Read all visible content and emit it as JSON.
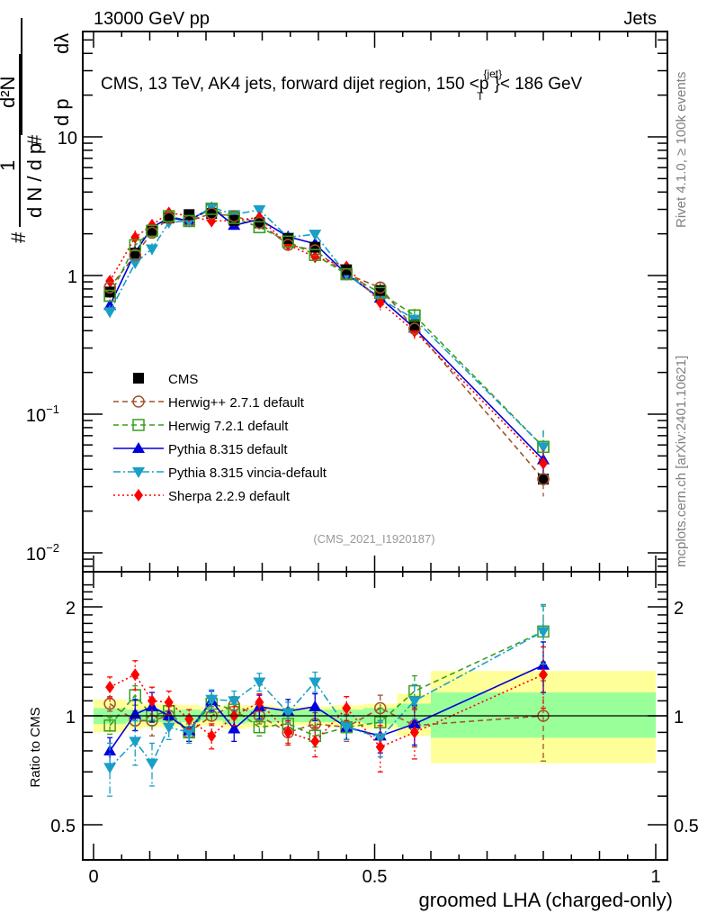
{
  "header": {
    "left": "13000 GeV pp",
    "right": "Jets"
  },
  "side_labels": {
    "rivet": "Rivet 4.1.0, ≥ 100k events",
    "mcplots": "mcplots.cern.ch [arXiv:2401.10621]"
  },
  "chart_data": {
    "type": "line",
    "title": "CMS, 13 TeV, AK4 jets, forward dijet region, 150 <p_T^{jet}< 186 GeV",
    "title_parts": {
      "main": "CMS, 13 TeV, AK4 jets, forward dijet region, 150 <p",
      "sup": "{jet}",
      "sub": "T",
      "tail": "}< 186 GeV"
    },
    "analysis_tag": "(CMS_2021_I1920187)",
    "xlabel": "groomed LHA (charged-only)",
    "ylabel": "1/(dN/dp_T) d²N/(dp_T dλ)",
    "ylabel_parts": {
      "hash": "#",
      "one": "1",
      "den": "d N / d p",
      "numer": "d²N",
      "den2": "d p",
      "dl": "dλ",
      "sub": "T"
    },
    "ratio_ylabel": "Ratio to CMS",
    "xlim": [
      0,
      1
    ],
    "ylim": [
      0.007,
      40
    ],
    "yscale": "log",
    "ratio_ylim": [
      0.42,
      2.4
    ],
    "ratio_yscale": "log",
    "x_ticks": [
      0,
      0.5,
      1
    ],
    "x_tick_labels": [
      "0",
      "0.5",
      "1"
    ],
    "y_tick_labels": [
      {
        "value": 10,
        "label": "10"
      },
      {
        "value": 1,
        "label": "1"
      },
      {
        "value": 0.1,
        "label": "10",
        "exp": "−1"
      },
      {
        "value": 0.01,
        "label": "10",
        "exp": "−2"
      }
    ],
    "ratio_tick_labels": [
      {
        "value": 2,
        "label": "2"
      },
      {
        "value": 1,
        "label": "1"
      },
      {
        "value": 0.5,
        "label": "0.5"
      }
    ],
    "legend_position": "center-left",
    "x": [
      0.029,
      0.074,
      0.104,
      0.134,
      0.17,
      0.21,
      0.25,
      0.295,
      0.346,
      0.394,
      0.45,
      0.51,
      0.571,
      0.8
    ],
    "bin_edges": [
      0,
      0.058,
      0.088,
      0.118,
      0.15,
      0.19,
      0.23,
      0.27,
      0.32,
      0.37,
      0.42,
      0.48,
      0.54,
      0.6,
      1.0
    ],
    "data": {
      "name": "CMS",
      "values": [
        0.76,
        1.45,
        2.1,
        2.6,
        2.75,
        2.8,
        2.5,
        2.4,
        1.85,
        1.6,
        1.1,
        0.78,
        0.44,
        0.034
      ],
      "band_green": [
        [
          0.95,
          1.05
        ],
        [
          0.96,
          1.04
        ],
        [
          0.96,
          1.04
        ],
        [
          0.96,
          1.04
        ],
        [
          0.96,
          1.04
        ],
        [
          0.97,
          1.03
        ],
        [
          0.95,
          1.04
        ],
        [
          0.96,
          1.04
        ],
        [
          0.96,
          1.04
        ],
        [
          0.96,
          1.04
        ],
        [
          0.96,
          1.04
        ],
        [
          0.95,
          1.05
        ],
        [
          0.93,
          1.08
        ],
        [
          0.87,
          1.16
        ]
      ],
      "band_yellow": [
        [
          0.9,
          1.11
        ],
        [
          0.92,
          1.09
        ],
        [
          0.93,
          1.08
        ],
        [
          0.93,
          1.08
        ],
        [
          0.93,
          1.07
        ],
        [
          0.94,
          1.06
        ],
        [
          0.92,
          1.07
        ],
        [
          0.93,
          1.07
        ],
        [
          0.94,
          1.06
        ],
        [
          0.94,
          1.06
        ],
        [
          0.93,
          1.07
        ],
        [
          0.92,
          1.08
        ],
        [
          0.88,
          1.15
        ],
        [
          0.74,
          1.33
        ]
      ]
    },
    "series": [
      {
        "name": "Herwig++ 2.7.1 default",
        "color": "#a0522d",
        "dash": "6,4",
        "marker": "open-circle",
        "ratio": [
          1.08,
          0.97,
          0.97,
          1.0,
          0.9,
          1.0,
          1.07,
          1.0,
          0.9,
          0.95,
          0.93,
          1.05,
          0.94,
          1.0
        ],
        "ratio_err": [
          0.05,
          0.06,
          0.09,
          0.06,
          0.05,
          0.06,
          0.06,
          0.05,
          0.06,
          0.07,
          0.08,
          0.09,
          0.12,
          0.25
        ]
      },
      {
        "name": "Herwig 7.2.1 default",
        "color": "#3a9e1e",
        "dash": "6,4",
        "marker": "open-square",
        "ratio": [
          0.94,
          1.14,
          1.0,
          1.03,
          0.9,
          1.08,
          1.04,
          0.93,
          0.95,
          0.88,
          0.93,
          0.96,
          1.17,
          1.71
        ],
        "ratio_err": [
          0.05,
          0.07,
          0.06,
          0.06,
          0.05,
          0.06,
          0.06,
          0.05,
          0.06,
          0.06,
          0.07,
          0.09,
          0.12,
          0.3
        ]
      },
      {
        "name": "Pythia 8.315 default",
        "color": "#0000dd",
        "dash": "",
        "marker": "filled-triangle-up",
        "ratio": [
          0.8,
          1.01,
          1.06,
          1.0,
          0.91,
          1.1,
          0.92,
          1.06,
          1.03,
          1.06,
          0.93,
          0.88,
          0.95,
          1.38
        ],
        "ratio_err": [
          0.07,
          0.1,
          0.1,
          0.07,
          0.06,
          0.07,
          0.07,
          0.08,
          0.08,
          0.09,
          0.07,
          0.09,
          0.12,
          0.22
        ]
      },
      {
        "name": "Pythia 8.315 vincia-default",
        "color": "#1a9fc6",
        "dash": "8,3,2,3",
        "marker": "filled-triangle-down",
        "ratio": [
          0.72,
          0.85,
          0.74,
          0.93,
          0.9,
          1.11,
          1.1,
          1.24,
          1.02,
          1.24,
          0.93,
          0.87,
          1.1,
          1.71
        ],
        "ratio_err": [
          0.12,
          0.12,
          0.1,
          0.07,
          0.06,
          0.07,
          0.07,
          0.07,
          0.07,
          0.08,
          0.07,
          0.1,
          0.12,
          0.32
        ]
      },
      {
        "name": "Sherpa 2.2.9 default",
        "color": "#ff0000",
        "dash": "2,3",
        "marker": "filled-diamond",
        "ratio": [
          1.2,
          1.3,
          1.1,
          1.09,
          0.98,
          0.88,
          1.0,
          1.09,
          0.9,
          0.85,
          1.05,
          0.82,
          0.9,
          1.3
        ],
        "ratio_err": [
          0.08,
          0.12,
          0.1,
          0.08,
          0.06,
          0.07,
          0.06,
          0.06,
          0.07,
          0.08,
          0.08,
          0.12,
          0.14,
          0.25
        ]
      }
    ]
  }
}
